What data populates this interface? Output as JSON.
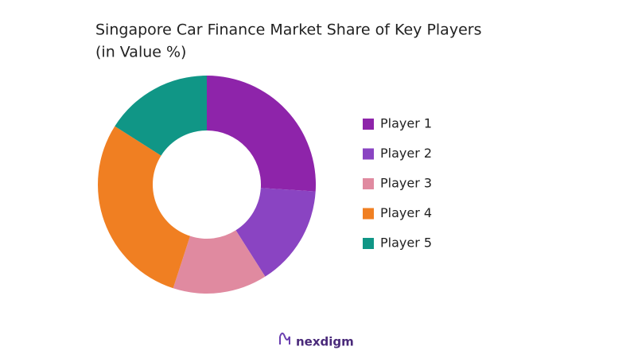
{
  "chart_data": {
    "type": "donut",
    "title": "Singapore Car Finance Market Share of Key Players",
    "subtitle": "(in Value %)",
    "categories": [
      "Player 1",
      "Player 2",
      "Player 3",
      "Player 4",
      "Player 5"
    ],
    "values": [
      26,
      15,
      14,
      29,
      16
    ],
    "colors": [
      "#8e24aa",
      "#8a44c2",
      "#e08aa0",
      "#f07f22",
      "#109686"
    ],
    "brand": "nexdigm"
  }
}
